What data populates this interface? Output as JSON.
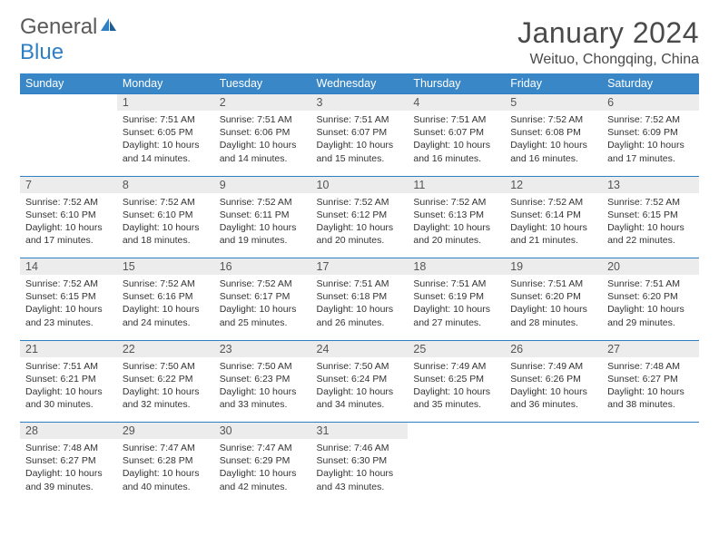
{
  "logo": {
    "text_gray": "General",
    "text_blue": "Blue"
  },
  "title": "January 2024",
  "location": "Weituo, Chongqing, China",
  "colors": {
    "header_bar": "#3a87c8",
    "day_num_bg": "#ececec",
    "rule": "#2f7fc5",
    "text": "#333333",
    "logo_gray": "#5a5a5a",
    "logo_blue": "#2f7fc5",
    "page_bg": "#ffffff"
  },
  "typography": {
    "title_fontsize": 32,
    "location_fontsize": 16,
    "dow_fontsize": 12.5,
    "cell_fontsize": 10.5
  },
  "dow": [
    "Sunday",
    "Monday",
    "Tuesday",
    "Wednesday",
    "Thursday",
    "Friday",
    "Saturday"
  ],
  "weeks": [
    {
      "nums": [
        "",
        "1",
        "2",
        "3",
        "4",
        "5",
        "6"
      ],
      "cells": [
        "",
        "Sunrise: 7:51 AM\nSunset: 6:05 PM\nDaylight: 10 hours and 14 minutes.",
        "Sunrise: 7:51 AM\nSunset: 6:06 PM\nDaylight: 10 hours and 14 minutes.",
        "Sunrise: 7:51 AM\nSunset: 6:07 PM\nDaylight: 10 hours and 15 minutes.",
        "Sunrise: 7:51 AM\nSunset: 6:07 PM\nDaylight: 10 hours and 16 minutes.",
        "Sunrise: 7:52 AM\nSunset: 6:08 PM\nDaylight: 10 hours and 16 minutes.",
        "Sunrise: 7:52 AM\nSunset: 6:09 PM\nDaylight: 10 hours and 17 minutes."
      ]
    },
    {
      "nums": [
        "7",
        "8",
        "9",
        "10",
        "11",
        "12",
        "13"
      ],
      "cells": [
        "Sunrise: 7:52 AM\nSunset: 6:10 PM\nDaylight: 10 hours and 17 minutes.",
        "Sunrise: 7:52 AM\nSunset: 6:10 PM\nDaylight: 10 hours and 18 minutes.",
        "Sunrise: 7:52 AM\nSunset: 6:11 PM\nDaylight: 10 hours and 19 minutes.",
        "Sunrise: 7:52 AM\nSunset: 6:12 PM\nDaylight: 10 hours and 20 minutes.",
        "Sunrise: 7:52 AM\nSunset: 6:13 PM\nDaylight: 10 hours and 20 minutes.",
        "Sunrise: 7:52 AM\nSunset: 6:14 PM\nDaylight: 10 hours and 21 minutes.",
        "Sunrise: 7:52 AM\nSunset: 6:15 PM\nDaylight: 10 hours and 22 minutes."
      ]
    },
    {
      "nums": [
        "14",
        "15",
        "16",
        "17",
        "18",
        "19",
        "20"
      ],
      "cells": [
        "Sunrise: 7:52 AM\nSunset: 6:15 PM\nDaylight: 10 hours and 23 minutes.",
        "Sunrise: 7:52 AM\nSunset: 6:16 PM\nDaylight: 10 hours and 24 minutes.",
        "Sunrise: 7:52 AM\nSunset: 6:17 PM\nDaylight: 10 hours and 25 minutes.",
        "Sunrise: 7:51 AM\nSunset: 6:18 PM\nDaylight: 10 hours and 26 minutes.",
        "Sunrise: 7:51 AM\nSunset: 6:19 PM\nDaylight: 10 hours and 27 minutes.",
        "Sunrise: 7:51 AM\nSunset: 6:20 PM\nDaylight: 10 hours and 28 minutes.",
        "Sunrise: 7:51 AM\nSunset: 6:20 PM\nDaylight: 10 hours and 29 minutes."
      ]
    },
    {
      "nums": [
        "21",
        "22",
        "23",
        "24",
        "25",
        "26",
        "27"
      ],
      "cells": [
        "Sunrise: 7:51 AM\nSunset: 6:21 PM\nDaylight: 10 hours and 30 minutes.",
        "Sunrise: 7:50 AM\nSunset: 6:22 PM\nDaylight: 10 hours and 32 minutes.",
        "Sunrise: 7:50 AM\nSunset: 6:23 PM\nDaylight: 10 hours and 33 minutes.",
        "Sunrise: 7:50 AM\nSunset: 6:24 PM\nDaylight: 10 hours and 34 minutes.",
        "Sunrise: 7:49 AM\nSunset: 6:25 PM\nDaylight: 10 hours and 35 minutes.",
        "Sunrise: 7:49 AM\nSunset: 6:26 PM\nDaylight: 10 hours and 36 minutes.",
        "Sunrise: 7:48 AM\nSunset: 6:27 PM\nDaylight: 10 hours and 38 minutes."
      ]
    },
    {
      "nums": [
        "28",
        "29",
        "30",
        "31",
        "",
        "",
        ""
      ],
      "cells": [
        "Sunrise: 7:48 AM\nSunset: 6:27 PM\nDaylight: 10 hours and 39 minutes.",
        "Sunrise: 7:47 AM\nSunset: 6:28 PM\nDaylight: 10 hours and 40 minutes.",
        "Sunrise: 7:47 AM\nSunset: 6:29 PM\nDaylight: 10 hours and 42 minutes.",
        "Sunrise: 7:46 AM\nSunset: 6:30 PM\nDaylight: 10 hours and 43 minutes.",
        "",
        "",
        ""
      ]
    }
  ]
}
